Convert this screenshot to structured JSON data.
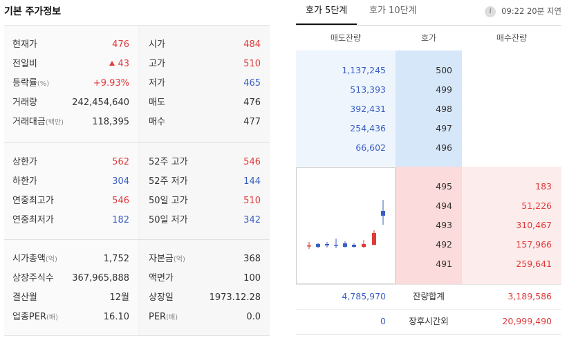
{
  "left": {
    "title": "기본 주가정보",
    "s1": [
      {
        "k": "현재가",
        "v": "476",
        "c": "red",
        "k2": "시가",
        "v2": "484",
        "c2": "red"
      },
      {
        "k": "전일비",
        "v": "43",
        "c": "red",
        "tri": true,
        "k2": "고가",
        "v2": "510",
        "c2": "red"
      },
      {
        "k": "등락률",
        "ks": "(%)",
        "v": "+9.93%",
        "c": "red",
        "k2": "저가",
        "v2": "465",
        "c2": "blue"
      },
      {
        "k": "거래량",
        "v": "242,454,640",
        "c": "dark",
        "k2": "매도",
        "v2": "476",
        "c2": "dark"
      },
      {
        "k": "거래대금",
        "ks": "(백만)",
        "v": "118,395",
        "c": "dark",
        "k2": "매수",
        "v2": "477",
        "c2": "dark"
      }
    ],
    "s2": [
      {
        "k": "상한가",
        "v": "562",
        "c": "red",
        "k2": "52주 고가",
        "v2": "546",
        "c2": "red"
      },
      {
        "k": "하한가",
        "v": "304",
        "c": "blue",
        "k2": "52주 저가",
        "v2": "144",
        "c2": "blue"
      },
      {
        "k": "연중최고가",
        "v": "546",
        "c": "red",
        "k2": "50일 고가",
        "v2": "510",
        "c2": "red"
      },
      {
        "k": "연중최저가",
        "v": "182",
        "c": "blue",
        "k2": "50일 저가",
        "v2": "342",
        "c2": "blue"
      }
    ],
    "s3": [
      {
        "k": "시가총액",
        "ks": "(억)",
        "v": "1,752",
        "c": "dark",
        "k2": "자본금",
        "k2s": "(억)",
        "v2": "368",
        "c2": "dark"
      },
      {
        "k": "상장주식수",
        "v": "367,965,888",
        "c": "dark",
        "k2": "액면가",
        "v2": "100",
        "c2": "dark"
      },
      {
        "k": "결산월",
        "v": "12월",
        "c": "dark",
        "k2": "상장일",
        "v2": "1973.12.28",
        "c2": "dark"
      },
      {
        "k": "업종PER",
        "ks": "(배)",
        "v": "16.10",
        "c": "dark",
        "k2": "PER",
        "k2s": "(배)",
        "v2": "0.0",
        "c2": "dark"
      }
    ]
  },
  "tabs": [
    "호가 5단계",
    "호가 10단계"
  ],
  "delay": {
    "icon": "i",
    "text": "09:22 20분 지연"
  },
  "orderbook": {
    "headers": [
      "매도잔량",
      "호가",
      "매수잔량"
    ],
    "asks": [
      {
        "qty": "1,137,245",
        "price": "500"
      },
      {
        "qty": "513,393",
        "price": "499"
      },
      {
        "qty": "392,431",
        "price": "498"
      },
      {
        "qty": "254,436",
        "price": "497"
      },
      {
        "qty": "66,602",
        "price": "496"
      }
    ],
    "bids": [
      {
        "price": "495",
        "qty": "183"
      },
      {
        "price": "494",
        "qty": "51,226"
      },
      {
        "price": "493",
        "qty": "310,467"
      },
      {
        "price": "492",
        "qty": "157,966"
      },
      {
        "price": "491",
        "qty": "259,641"
      }
    ],
    "total": {
      "ask": "4,785,970",
      "label": "잔량합계",
      "bid": "3,189,586"
    },
    "after": {
      "ask": "0",
      "label": "장후시간외",
      "bid": "20,999,490"
    }
  },
  "colors": {
    "up": "#e03a3a",
    "down": "#3a5fc4",
    "ask_bg": "#eef5fd",
    "ask_price_bg": "#d7e7fa",
    "bid_bg": "#fdecec",
    "bid_price_bg": "#fbdbdb"
  }
}
